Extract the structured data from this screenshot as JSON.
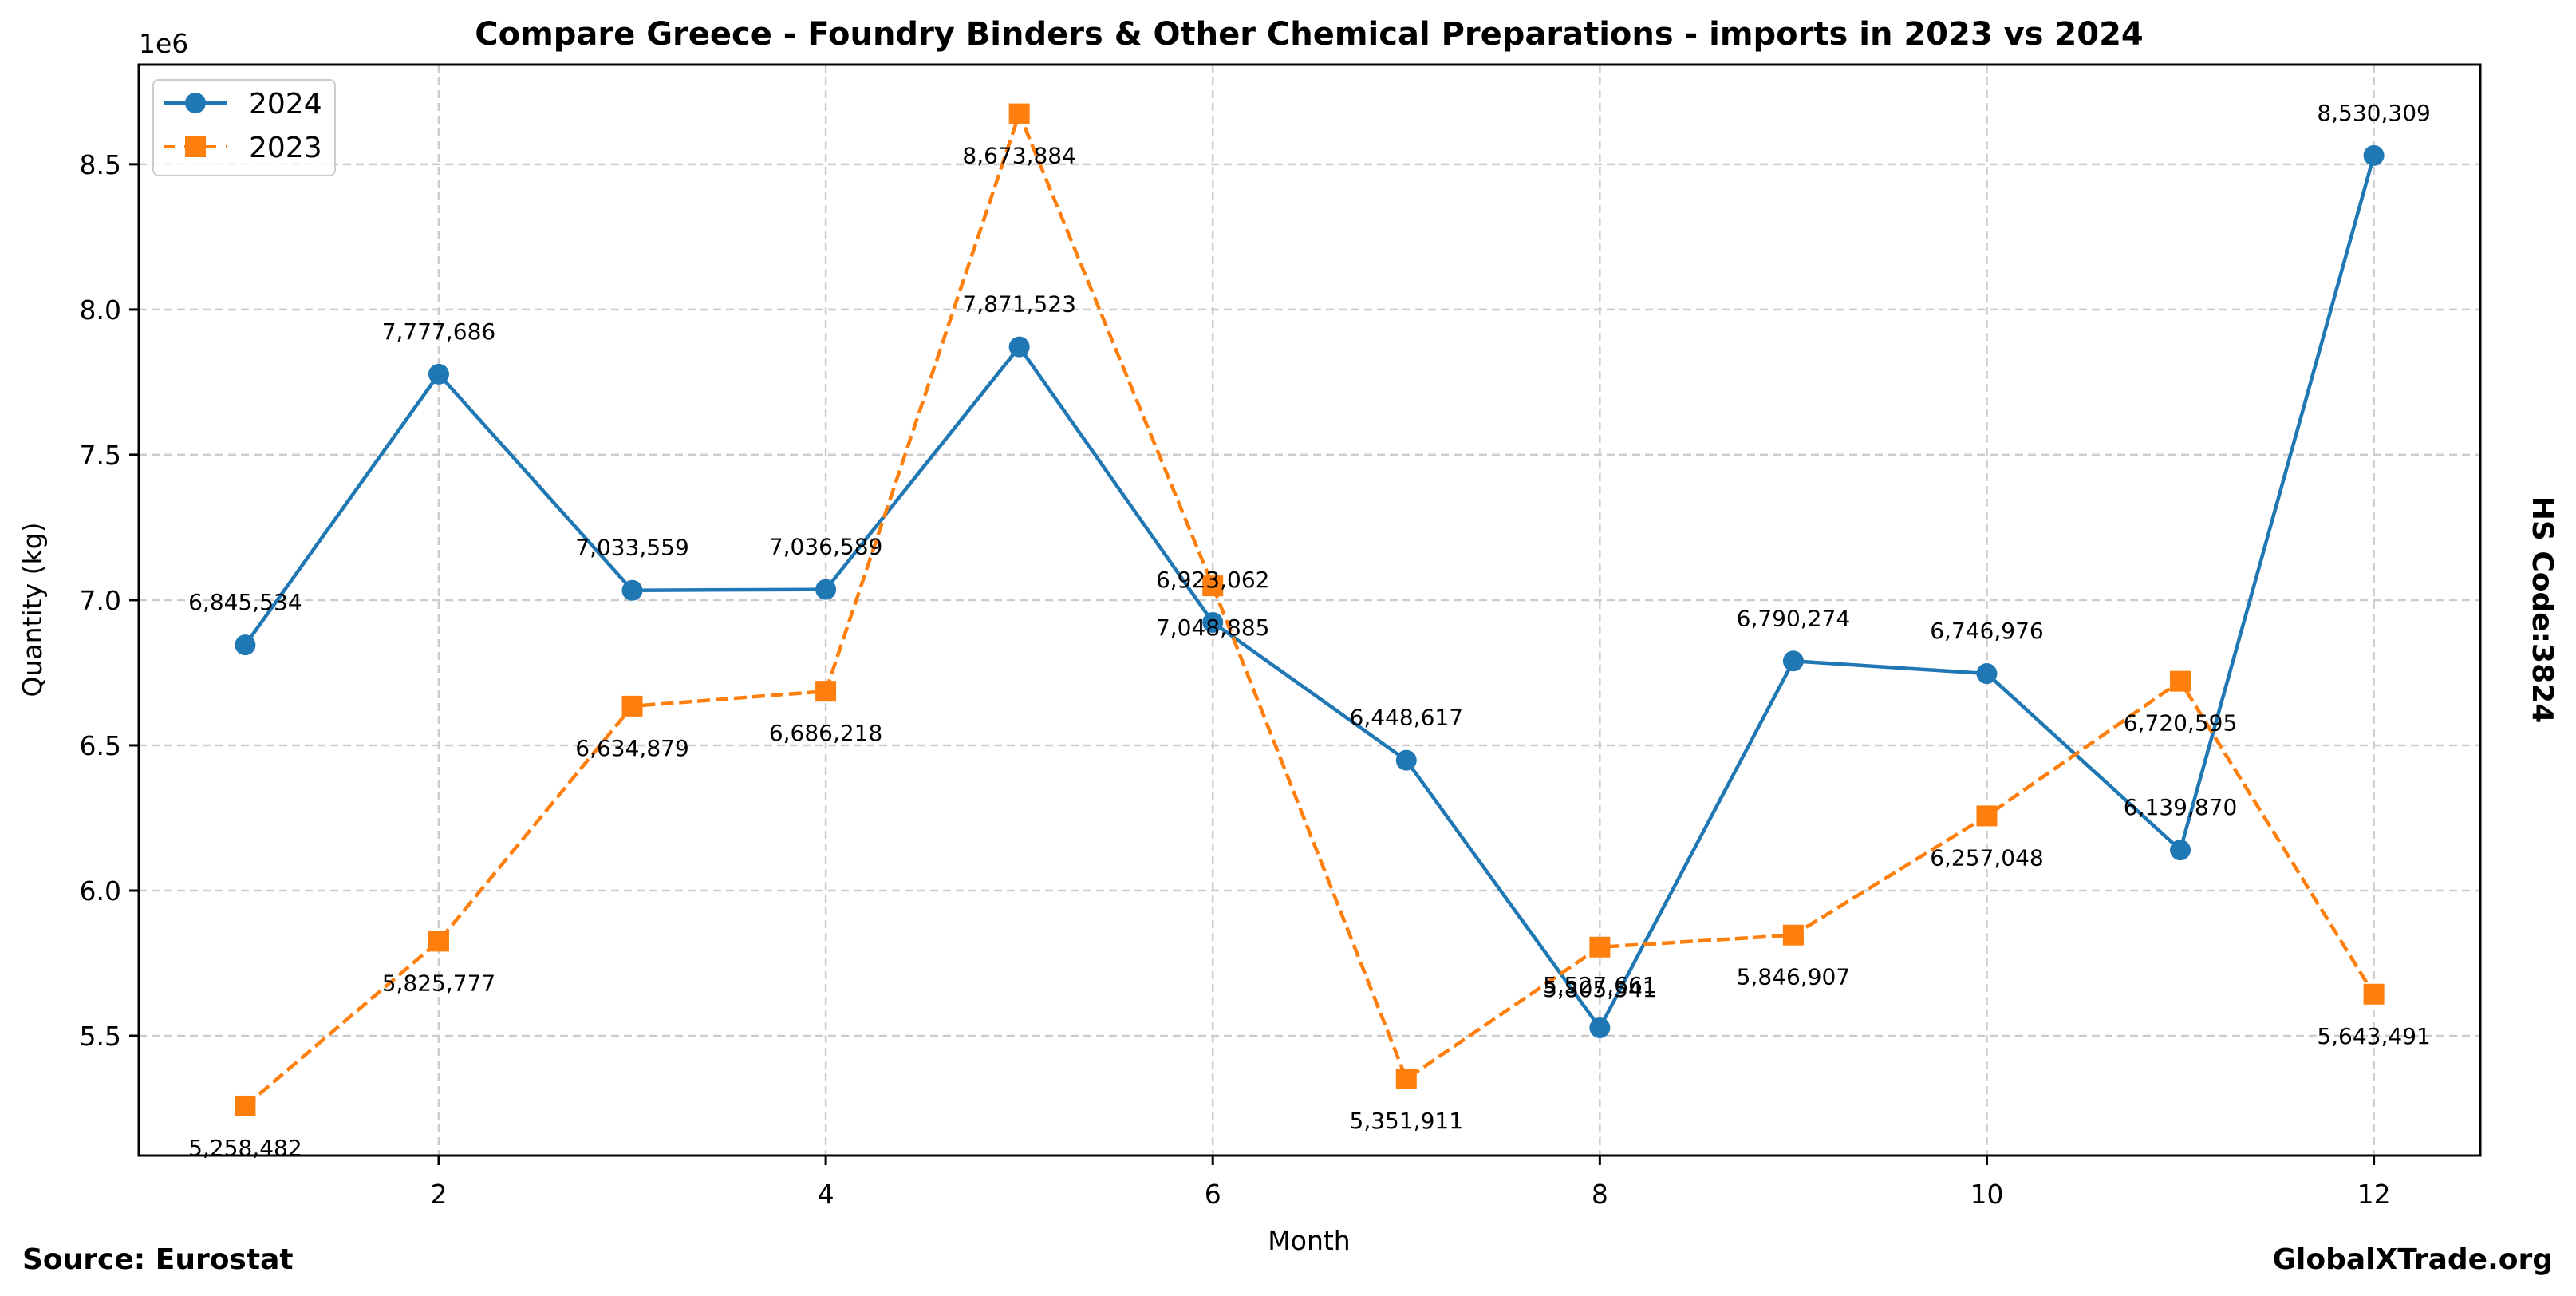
{
  "chart_data": {
    "type": "line",
    "title": "Compare Greece - Foundry Binders & Other Chemical Preparations - imports in 2023 vs 2024",
    "xlabel": "Month",
    "ylabel": "Quantity (kg)",
    "y_offset_label": "1e6",
    "x": [
      1,
      2,
      3,
      4,
      5,
      6,
      7,
      8,
      9,
      10,
      11,
      12
    ],
    "xlim": [
      0.45,
      12.55
    ],
    "ylim": [
      5088000,
      8843000
    ],
    "xticks": [
      2,
      4,
      6,
      8,
      10,
      12
    ],
    "xtick_labels": [
      "2",
      "4",
      "6",
      "8",
      "10",
      "12"
    ],
    "yticks": [
      5500000,
      6000000,
      6500000,
      7000000,
      7500000,
      8000000,
      8500000
    ],
    "ytick_labels": [
      "5.5",
      "6.0",
      "6.5",
      "7.0",
      "7.5",
      "8.0",
      "8.5"
    ],
    "grid": true,
    "legend_position": "top-left",
    "series": [
      {
        "name": "2024",
        "color": "#1f77b4",
        "marker": "circle",
        "linestyle": "solid",
        "label_position": "above",
        "values": [
          6845534,
          7777686,
          7033559,
          7036589,
          7871523,
          6923062,
          6448617,
          5527661,
          6790274,
          6746976,
          6139870,
          8530309
        ],
        "labels": [
          "6,845,534",
          "7,777,686",
          "7,033,559",
          "7,036,589",
          "7,871,523",
          "6,923,062",
          "6,448,617",
          "5,527,661",
          "6,790,274",
          "6,746,976",
          "6,139,870",
          "8,530,309"
        ]
      },
      {
        "name": "2023",
        "color": "#ff7f0e",
        "marker": "square",
        "linestyle": "dashed",
        "label_position": "below",
        "values": [
          5258482,
          5825777,
          6634879,
          6686218,
          8673884,
          7048885,
          5351911,
          5805541,
          5846907,
          6257048,
          6720595,
          5643491
        ],
        "labels": [
          "5,258,482",
          "5,825,777",
          "6,634,879",
          "6,686,218",
          "8,673,884",
          "7,048,885",
          "5,351,911",
          "5,805,541",
          "5,846,907",
          "6,257,048",
          "6,720,595",
          "5,643,491"
        ]
      }
    ]
  },
  "annotations": {
    "right_text": "HS Code:3824",
    "source": "Source: Eurostat",
    "site": "GlobalXTrade.org"
  }
}
